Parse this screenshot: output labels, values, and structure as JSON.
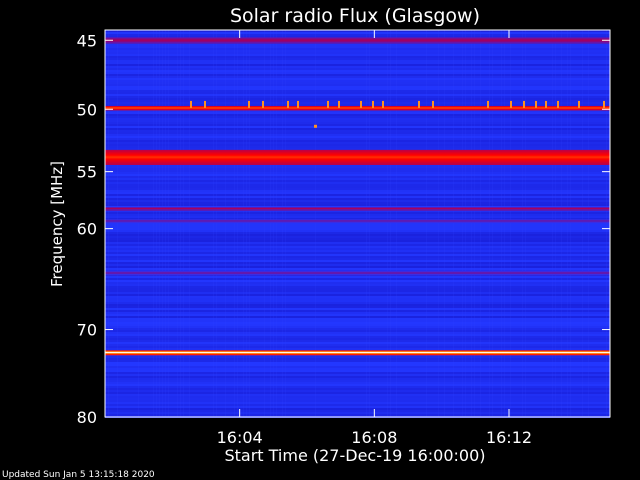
{
  "chart_data": {
    "type": "heatmap",
    "title": "Solar radio Flux (Glasgow)",
    "ylabel": "Frequency [MHz]",
    "xlabel": "Start Time (27-Dec-19 16:00:00)",
    "footer": "Updated Sun Jan  5 13:15:18 2020",
    "x_range_minutes": [
      0,
      15.0
    ],
    "y_range_mhz": [
      44.3,
      80.0
    ],
    "y_scale": "log",
    "x_ticks": [
      {
        "value": 4,
        "label": "16:04"
      },
      {
        "value": 8,
        "label": "16:08"
      },
      {
        "value": 12,
        "label": "16:12"
      }
    ],
    "y_ticks": [
      {
        "value": 45,
        "label": "45"
      },
      {
        "value": 50,
        "label": "50"
      },
      {
        "value": 55,
        "label": "55"
      },
      {
        "value": 60,
        "label": "60"
      },
      {
        "value": 70,
        "label": "70"
      },
      {
        "value": 80,
        "label": "80"
      }
    ],
    "colorscale": [
      "#000000",
      "#1010e6",
      "#2030ff",
      "#a00060",
      "#ff0000",
      "#ff8000",
      "#ffff80",
      "#ffffff"
    ],
    "bands": [
      {
        "freq_mhz": 45.0,
        "width_mhz": 0.4,
        "intensity": 0.55
      },
      {
        "freq_mhz": 49.9,
        "width_mhz": 0.3,
        "intensity": 0.85
      },
      {
        "freq_mhz": 53.8,
        "width_mhz": 1.2,
        "intensity": 0.78
      },
      {
        "freq_mhz": 58.2,
        "width_mhz": 0.3,
        "intensity": 0.55
      },
      {
        "freq_mhz": 59.3,
        "width_mhz": 0.3,
        "intensity": 0.45
      },
      {
        "freq_mhz": 64.2,
        "width_mhz": 0.4,
        "intensity": 0.45
      },
      {
        "freq_mhz": 72.5,
        "width_mhz": 0.5,
        "intensity": 1.0
      }
    ]
  }
}
